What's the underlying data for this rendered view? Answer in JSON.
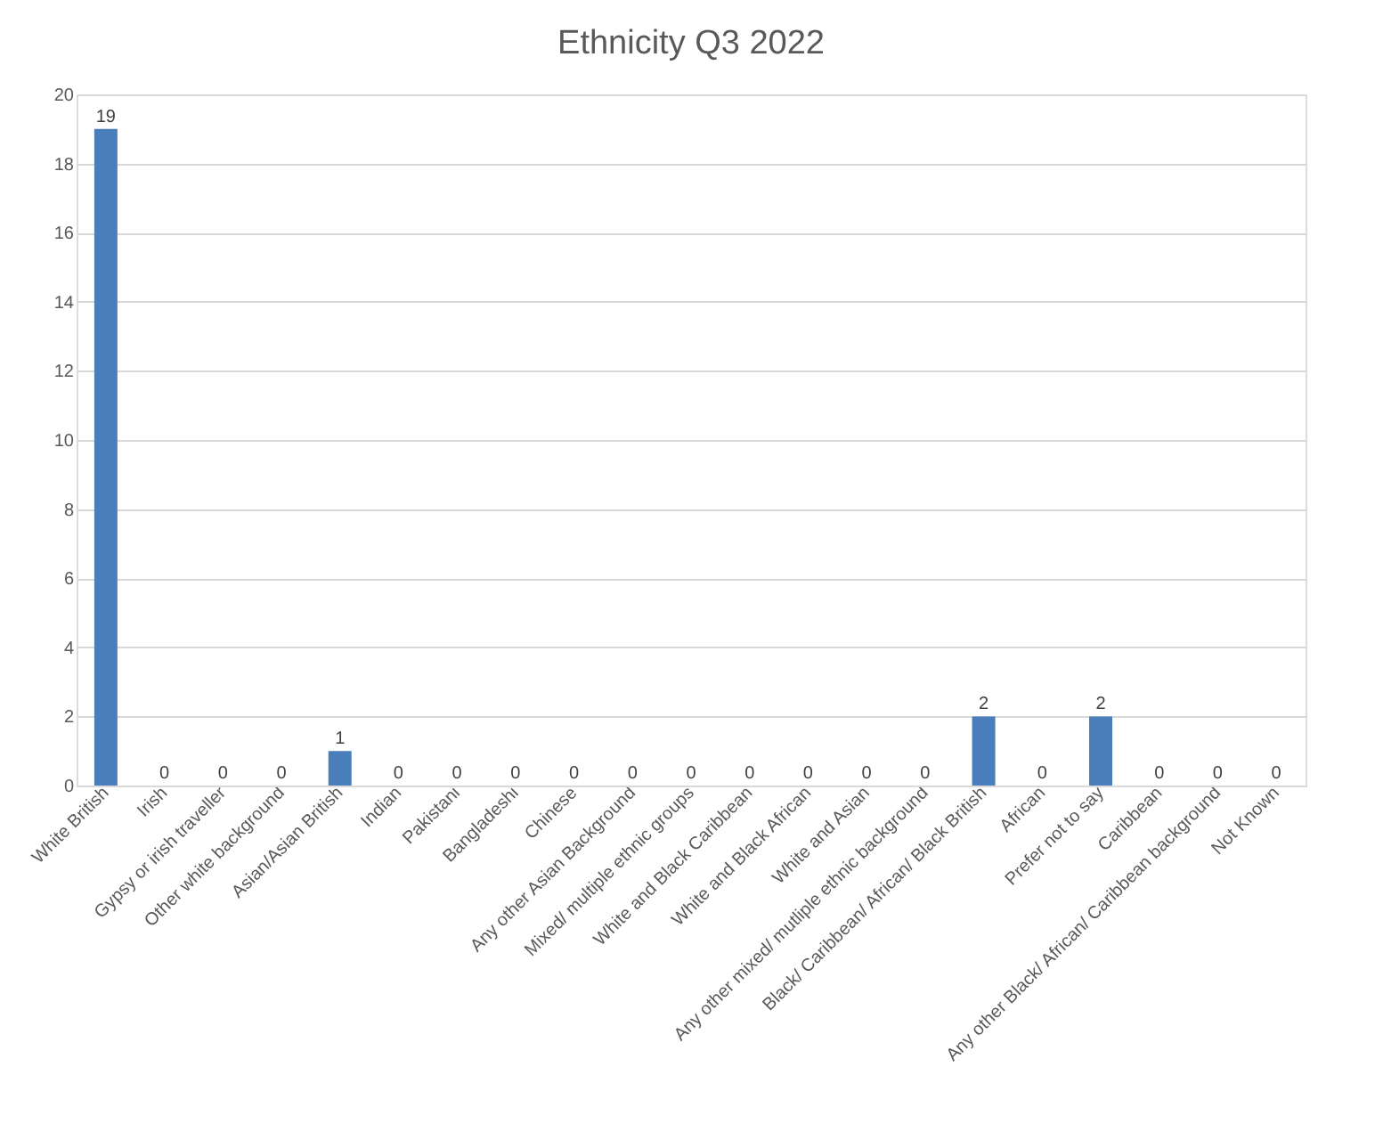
{
  "chart_data": {
    "type": "bar",
    "title": "Ethnicity Q3 2022",
    "categories": [
      "White British",
      "Irish",
      "Gypsy or irish traveller",
      "Other white background",
      "Asian/Asian British",
      "Indian",
      "Pakistani",
      "Bangladeshi",
      "Chinese",
      "Any other Asian Background",
      "Mixed/ multiple ethnic groups",
      "White and Black Caribbean",
      "White and Black African",
      "White and Asian",
      "Any other mixed/ mutliple ethnic background",
      "Black/ Caribbean/ African/ Black British",
      "African",
      "Prefer not to say",
      "Caribbean",
      "Any other Black/ African/ Caribbean background",
      "Not Known"
    ],
    "values": [
      19,
      0,
      0,
      0,
      1,
      0,
      0,
      0,
      0,
      0,
      0,
      0,
      0,
      0,
      0,
      2,
      0,
      2,
      0,
      0,
      0
    ],
    "color": "#4a7ebb",
    "ylim": [
      0,
      20
    ],
    "yticks": [
      0,
      2,
      4,
      6,
      8,
      10,
      12,
      14,
      16,
      18,
      20
    ],
    "grid": "y",
    "data_labels": true
  }
}
